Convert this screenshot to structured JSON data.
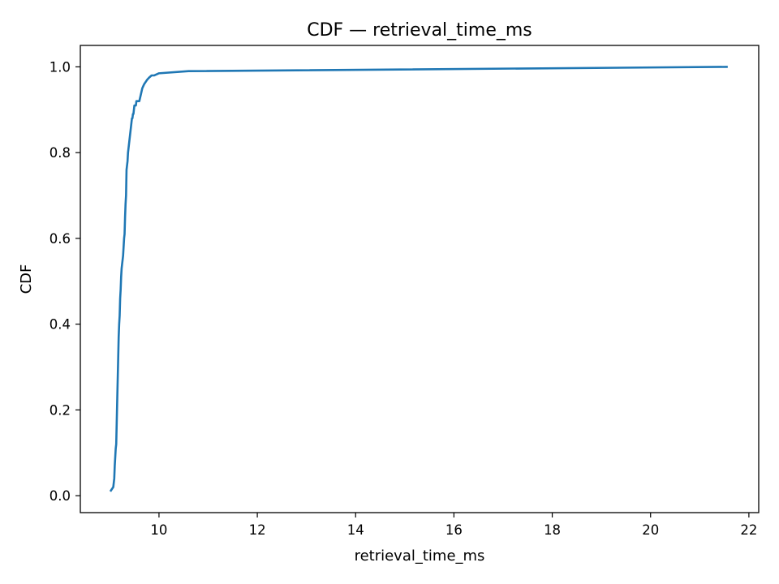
{
  "chart_data": {
    "type": "line",
    "title": "CDF — retrieval_time_ms",
    "xlabel": "retrieval_time_ms",
    "ylabel": "CDF",
    "xlim": [
      8.4,
      22.2
    ],
    "ylim": [
      -0.0395,
      1.05
    ],
    "x_ticks": [
      10,
      12,
      14,
      16,
      18,
      20,
      22
    ],
    "y_ticks": [
      0.0,
      0.2,
      0.4,
      0.6,
      0.8,
      1.0
    ],
    "x_tick_labels": [
      "10",
      "12",
      "14",
      "16",
      "18",
      "20",
      "22"
    ],
    "y_tick_labels": [
      "0.0",
      "0.2",
      "0.4",
      "0.6",
      "0.8",
      "1.0"
    ],
    "grid": false,
    "line_color": "#1f77b4",
    "series": [
      {
        "x": [
          9.01,
          9.07,
          9.09,
          9.1,
          9.11,
          9.12,
          9.13,
          9.14,
          9.15,
          9.16,
          9.17,
          9.18,
          9.19,
          9.2,
          9.21,
          9.22,
          9.23,
          9.24,
          9.25,
          9.26,
          9.27,
          9.28,
          9.29,
          9.3,
          9.31,
          9.32,
          9.33,
          9.34,
          9.35,
          9.36,
          9.37,
          9.38,
          9.39,
          9.4,
          9.41,
          9.42,
          9.43,
          9.44,
          9.45,
          9.46,
          9.47,
          9.48,
          9.49,
          9.5,
          9.51,
          9.52,
          9.53,
          9.54,
          9.56,
          9.58,
          9.6,
          9.62,
          9.64,
          9.66,
          9.68,
          9.7,
          9.73,
          9.76,
          9.8,
          9.85,
          9.9,
          10.0,
          10.6,
          21.57
        ],
        "y": [
          0.01,
          0.02,
          0.04,
          0.07,
          0.09,
          0.11,
          0.12,
          0.17,
          0.22,
          0.27,
          0.32,
          0.37,
          0.4,
          0.42,
          0.46,
          0.48,
          0.51,
          0.53,
          0.54,
          0.55,
          0.56,
          0.58,
          0.6,
          0.61,
          0.65,
          0.68,
          0.7,
          0.76,
          0.77,
          0.78,
          0.8,
          0.81,
          0.82,
          0.83,
          0.84,
          0.85,
          0.86,
          0.87,
          0.88,
          0.88,
          0.89,
          0.89,
          0.9,
          0.91,
          0.91,
          0.91,
          0.91,
          0.92,
          0.92,
          0.92,
          0.92,
          0.93,
          0.94,
          0.95,
          0.955,
          0.96,
          0.965,
          0.97,
          0.975,
          0.98,
          0.98,
          0.985,
          0.99,
          1.0
        ]
      }
    ]
  }
}
